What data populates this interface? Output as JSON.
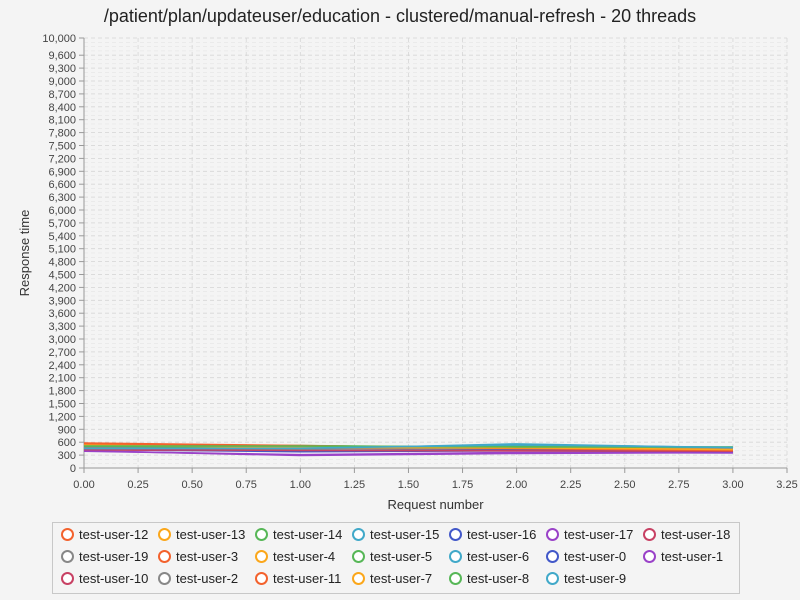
{
  "chart_data": {
    "type": "line",
    "title": "/patient/plan/updateuser/education - clustered/manual-refresh - 20 threads",
    "xlabel": "Request number",
    "ylabel": "Response time",
    "xlim": [
      0,
      3.25
    ],
    "ylim": [
      0,
      10000
    ],
    "x_ticks": [
      "0.00",
      "0.25",
      "0.50",
      "0.75",
      "1.00",
      "1.25",
      "1.50",
      "1.75",
      "2.00",
      "2.25",
      "2.50",
      "2.75",
      "3.00",
      "3.25"
    ],
    "y_ticks": [
      "0",
      "300",
      "600",
      "900",
      "1,200",
      "1,500",
      "1,800",
      "2,100",
      "2,400",
      "2,700",
      "3,000",
      "3,300",
      "3,600",
      "3,900",
      "4,200",
      "4,500",
      "4,800",
      "5,100",
      "5,400",
      "5,700",
      "6,000",
      "6,300",
      "6,600",
      "6,900",
      "7,200",
      "7,500",
      "7,800",
      "8,100",
      "8,400",
      "8,700",
      "9,000",
      "9,300",
      "9,600",
      "10,000"
    ],
    "grid": true,
    "legend_position": "bottom",
    "x": [
      0,
      1,
      2,
      3
    ],
    "series": [
      {
        "name": "test-user-12",
        "color": "#f3622d",
        "values": [
          560,
          500,
          460,
          430
        ]
      },
      {
        "name": "test-user-13",
        "color": "#fba71b",
        "values": [
          520,
          470,
          450,
          440
        ]
      },
      {
        "name": "test-user-14",
        "color": "#57b757",
        "values": [
          500,
          520,
          480,
          470
        ]
      },
      {
        "name": "test-user-15",
        "color": "#41a9c9",
        "values": [
          460,
          430,
          520,
          460
        ]
      },
      {
        "name": "test-user-16",
        "color": "#4258c9",
        "values": [
          430,
          380,
          400,
          380
        ]
      },
      {
        "name": "test-user-17",
        "color": "#9a42c8",
        "values": [
          400,
          290,
          340,
          360
        ]
      },
      {
        "name": "test-user-18",
        "color": "#c84164",
        "values": [
          420,
          400,
          420,
          400
        ]
      },
      {
        "name": "test-user-19",
        "color": "#888888",
        "values": [
          480,
          450,
          470,
          450
        ]
      },
      {
        "name": "test-user-3",
        "color": "#f3622d",
        "values": [
          540,
          480,
          440,
          420
        ]
      },
      {
        "name": "test-user-4",
        "color": "#fba71b",
        "values": [
          510,
          460,
          480,
          450
        ]
      },
      {
        "name": "test-user-5",
        "color": "#57b757",
        "values": [
          490,
          500,
          500,
          480
        ]
      },
      {
        "name": "test-user-6",
        "color": "#41a9c9",
        "values": [
          470,
          440,
          560,
          470
        ]
      },
      {
        "name": "test-user-0",
        "color": "#4258c9",
        "values": [
          440,
          390,
          420,
          370
        ]
      },
      {
        "name": "test-user-1",
        "color": "#9a42c8",
        "values": [
          390,
          310,
          360,
          350
        ]
      },
      {
        "name": "test-user-10",
        "color": "#c84164",
        "values": [
          430,
          410,
          400,
          390
        ]
      },
      {
        "name": "test-user-2",
        "color": "#888888",
        "values": [
          470,
          440,
          460,
          440
        ]
      },
      {
        "name": "test-user-11",
        "color": "#f3622d",
        "values": [
          580,
          520,
          450,
          410
        ]
      },
      {
        "name": "test-user-7",
        "color": "#fba71b",
        "values": [
          530,
          480,
          470,
          430
        ]
      },
      {
        "name": "test-user-8",
        "color": "#57b757",
        "values": [
          510,
          510,
          490,
          490
        ]
      },
      {
        "name": "test-user-9",
        "color": "#41a9c9",
        "values": [
          450,
          460,
          540,
          480
        ]
      }
    ]
  }
}
